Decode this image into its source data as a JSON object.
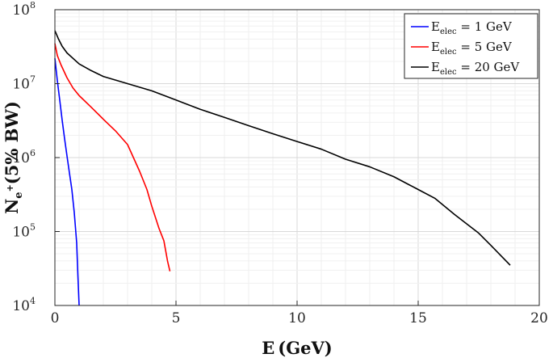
{
  "chart_data": {
    "type": "line",
    "xlabel": "E (GeV)",
    "ylabel": "N_{e+} (5% BW)",
    "xlim": [
      0,
      20
    ],
    "ylim": [
      10000,
      100000000
    ],
    "yscale": "log",
    "grid": true,
    "legend_position": "top-right",
    "x_ticks": [
      0,
      5,
      10,
      15,
      20
    ],
    "y_ticks": [
      {
        "value": 10000,
        "base": "10",
        "exp": "4"
      },
      {
        "value": 100000,
        "base": "10",
        "exp": "5"
      },
      {
        "value": 1000000,
        "base": "10",
        "exp": "6"
      },
      {
        "value": 10000000,
        "base": "10",
        "exp": "7"
      },
      {
        "value": 100000000,
        "base": "10",
        "exp": "8"
      }
    ],
    "series": [
      {
        "name": "E_elec = 1 GeV",
        "label_main": "E",
        "label_sub": "elec",
        "label_rest": " = 1 GeV",
        "color": "#0000ff",
        "points": [
          [
            0.0,
            22000000
          ],
          [
            0.1,
            11000000
          ],
          [
            0.2,
            6000000
          ],
          [
            0.3,
            3200000
          ],
          [
            0.4,
            1800000
          ],
          [
            0.5,
            1050000
          ],
          [
            0.6,
            620000
          ],
          [
            0.7,
            370000
          ],
          [
            0.8,
            180000
          ],
          [
            0.9,
            70000
          ],
          [
            0.95,
            25000
          ],
          [
            1.0,
            10000
          ]
        ]
      },
      {
        "name": "E_elec = 5 GeV",
        "label_main": "E",
        "label_sub": "elec",
        "label_rest": " = 5 GeV",
        "color": "#ff0000",
        "points": [
          [
            0.0,
            35000000
          ],
          [
            0.1,
            24000000
          ],
          [
            0.25,
            18000000
          ],
          [
            0.5,
            12000000
          ],
          [
            0.75,
            8700000
          ],
          [
            1.0,
            6900000
          ],
          [
            1.5,
            4800000
          ],
          [
            2.0,
            3300000
          ],
          [
            2.5,
            2300000
          ],
          [
            3.0,
            1500000
          ],
          [
            3.5,
            650000
          ],
          [
            3.8,
            370000
          ],
          [
            4.0,
            220000
          ],
          [
            4.3,
            110000
          ],
          [
            4.5,
            75000
          ],
          [
            4.65,
            40000
          ],
          [
            4.75,
            29000
          ]
        ]
      },
      {
        "name": "E_elec = 20 GeV",
        "label_main": "E",
        "label_sub": "elec",
        "label_rest": " = 20 GeV",
        "color": "#000000",
        "points": [
          [
            0.0,
            52000000
          ],
          [
            0.15,
            40000000
          ],
          [
            0.3,
            32000000
          ],
          [
            0.5,
            26000000
          ],
          [
            1.0,
            18500000
          ],
          [
            1.5,
            15000000
          ],
          [
            2.0,
            12500000
          ],
          [
            3.0,
            10000000
          ],
          [
            4.0,
            8000000
          ],
          [
            5.0,
            6000000
          ],
          [
            6.0,
            4500000
          ],
          [
            7.0,
            3500000
          ],
          [
            8.0,
            2700000
          ],
          [
            9.0,
            2100000
          ],
          [
            10.0,
            1650000
          ],
          [
            11.0,
            1300000
          ],
          [
            12.0,
            950000
          ],
          [
            13.0,
            750000
          ],
          [
            14.0,
            550000
          ],
          [
            15.0,
            370000
          ],
          [
            15.7,
            280000
          ],
          [
            16.5,
            170000
          ],
          [
            17.5,
            95000
          ],
          [
            18.0,
            65000
          ],
          [
            18.8,
            35000
          ]
        ]
      }
    ]
  }
}
